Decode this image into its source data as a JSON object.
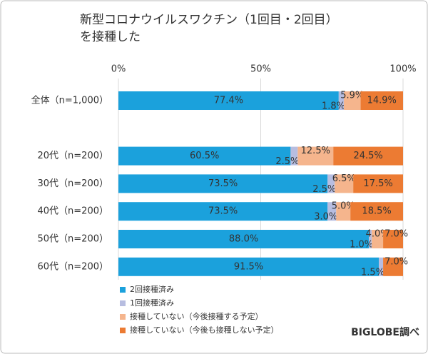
{
  "chart_data": {
    "type": "stacked-bar-horizontal",
    "title": [
      "新型コロナウイルスワクチン（1回目・2回目）",
      "を接種した"
    ],
    "categories": [
      "全体（n=1,000）",
      "20代（n=200）",
      "30代（n=200）",
      "40代（n=200）",
      "50代（n=200）",
      "60代（n=200）"
    ],
    "series": [
      {
        "name": "2回接種済み",
        "color": "#1ba1dc",
        "values": [
          77.4,
          60.5,
          73.5,
          73.5,
          88.0,
          91.5
        ],
        "value_labels": [
          "77.4%",
          "60.5%",
          "73.5%",
          "73.5%",
          "88.0%",
          "91.5%"
        ]
      },
      {
        "name": "1回接種済み",
        "color": "#b7bde0",
        "values": [
          1.8,
          2.5,
          2.5,
          3.0,
          1.0,
          1.5
        ],
        "value_labels": [
          "1.8%",
          "2.5%",
          "2.5%",
          "3.0%",
          "1.0%",
          "1.5%"
        ]
      },
      {
        "name": "接種していない（今後接種する予定）",
        "color": "#f5b58d",
        "values": [
          5.9,
          12.5,
          6.5,
          5.0,
          4.0,
          0
        ],
        "value_labels": [
          "5.9%",
          "12.5%",
          "6.5%",
          "5.0%",
          "4.0%",
          null
        ]
      },
      {
        "name": "接種していない（今後も接種しない予定）",
        "color": "#ec7b33",
        "values": [
          14.9,
          24.5,
          17.5,
          18.5,
          7.0,
          7.0
        ],
        "value_labels": [
          "14.9%",
          "24.5%",
          "17.5%",
          "18.5%",
          "7.0%",
          "7.0%"
        ]
      }
    ],
    "xlim": [
      0,
      100
    ],
    "xticks": [
      {
        "value": 0,
        "label": "0%"
      },
      {
        "value": 50,
        "label": "50%"
      },
      {
        "value": 100,
        "label": "100%"
      }
    ],
    "grid": true,
    "source": "BIGLOBE調べ"
  }
}
